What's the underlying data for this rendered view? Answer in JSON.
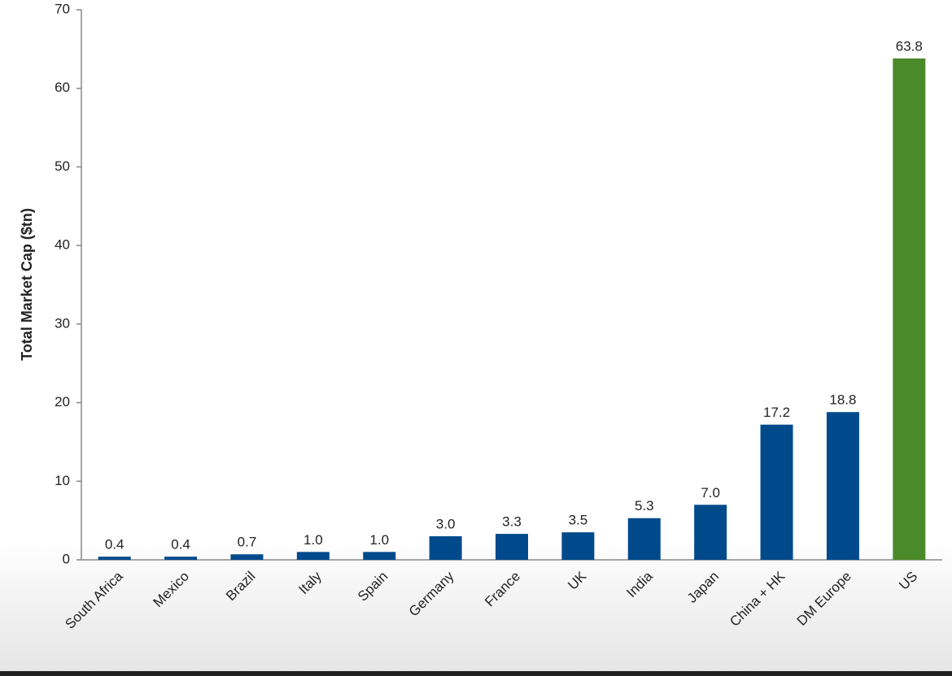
{
  "chart_data": {
    "type": "bar",
    "y_label": "Total Market Cap ($tn)",
    "categories": [
      "South Africa",
      "Mexico",
      "Brazil",
      "Italy",
      "Spain",
      "Germany",
      "France",
      "UK",
      "India",
      "Japan",
      "China + HK",
      "DM Europe",
      "US"
    ],
    "values": [
      0.4,
      0.4,
      0.7,
      1.0,
      1.0,
      3.0,
      3.3,
      3.5,
      5.3,
      7.0,
      17.2,
      18.8,
      63.8
    ],
    "value_labels": [
      "0.4",
      "0.4",
      "0.7",
      "1.0",
      "1.0",
      "3.0",
      "3.3",
      "3.5",
      "5.3",
      "7.0",
      "17.2",
      "18.8",
      "63.8"
    ],
    "colors": [
      "#004a8c",
      "#004a8c",
      "#004a8c",
      "#004a8c",
      "#004a8c",
      "#004a8c",
      "#004a8c",
      "#004a8c",
      "#004a8c",
      "#004a8c",
      "#004a8c",
      "#004a8c",
      "#4a8a2a"
    ],
    "ylim": [
      0,
      70
    ],
    "yticks": [
      0,
      10,
      20,
      30,
      40,
      50,
      60,
      70
    ],
    "grid": false
  }
}
